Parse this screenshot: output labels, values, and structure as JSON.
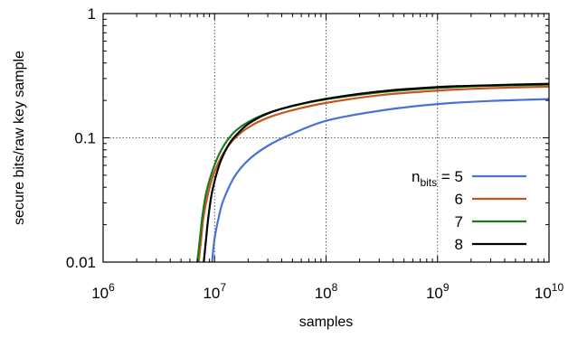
{
  "chart_data": {
    "type": "line",
    "xlabel": "samples",
    "ylabel": "secure bits/raw key sample",
    "x_scale": "log",
    "y_scale": "log",
    "xlim": [
      1000000,
      10000000000
    ],
    "ylim": [
      0.01,
      1
    ],
    "x_ticks": [
      {
        "value": 1000000,
        "base": "10",
        "exp": "6"
      },
      {
        "value": 10000000,
        "base": "10",
        "exp": "7"
      },
      {
        "value": 100000000,
        "base": "10",
        "exp": "8"
      },
      {
        "value": 1000000000,
        "base": "10",
        "exp": "9"
      },
      {
        "value": 10000000000,
        "base": "10",
        "exp": "10"
      }
    ],
    "y_ticks": [
      {
        "value": 0.01,
        "label": "0.01"
      },
      {
        "value": 0.1,
        "label": "0.1"
      },
      {
        "value": 1,
        "label": "1"
      }
    ],
    "grid": "dotted at major ticks",
    "legend": {
      "position": "right",
      "prefix_base": "n",
      "prefix_sub": "bits",
      "prefix_eq": " = "
    },
    "series": [
      {
        "name": "5",
        "color": "#4a72d6",
        "x": [
          9500000,
          10000000,
          11000000,
          12000000,
          15000000,
          20000000,
          30000000,
          50000000,
          100000000,
          300000000,
          1000000000,
          3000000000,
          10000000000
        ],
        "y": [
          0.01,
          0.0155,
          0.0238,
          0.0315,
          0.0483,
          0.066,
          0.0862,
          0.108,
          0.137,
          0.165,
          0.187,
          0.198,
          0.205
        ]
      },
      {
        "name": "6",
        "color": "#c8541a",
        "x": [
          7200000,
          7600000,
          8000000,
          9000000,
          10000000,
          12000000,
          15000000,
          20000000,
          30000000,
          50000000,
          100000000,
          300000000,
          1000000000,
          3000000000,
          10000000000
        ],
        "y": [
          0.01,
          0.0157,
          0.0239,
          0.0396,
          0.0534,
          0.0752,
          0.098,
          0.121,
          0.145,
          0.167,
          0.191,
          0.22,
          0.24,
          0.251,
          0.258
        ]
      },
      {
        "name": "7",
        "color": "#1e7a1e",
        "x": [
          7000000,
          7400000,
          7800000,
          8500000,
          10000000,
          12000000,
          15000000,
          20000000,
          30000000,
          50000000,
          100000000,
          300000000,
          1000000000,
          3000000000,
          10000000000
        ],
        "y": [
          0.01,
          0.0157,
          0.0239,
          0.0376,
          0.0605,
          0.0856,
          0.111,
          0.134,
          0.158,
          0.18,
          0.204,
          0.232,
          0.252,
          0.262,
          0.268
        ]
      },
      {
        "name": "8",
        "color": "#000000",
        "x": [
          8000000,
          8400000,
          8800000,
          9500000,
          11000000,
          13000000,
          15000000,
          20000000,
          30000000,
          50000000,
          100000000,
          300000000,
          1000000000,
          3000000000,
          10000000000
        ],
        "y": [
          0.01,
          0.0155,
          0.0231,
          0.0367,
          0.0602,
          0.0842,
          0.101,
          0.129,
          0.157,
          0.181,
          0.206,
          0.236,
          0.256,
          0.265,
          0.272
        ]
      }
    ]
  }
}
